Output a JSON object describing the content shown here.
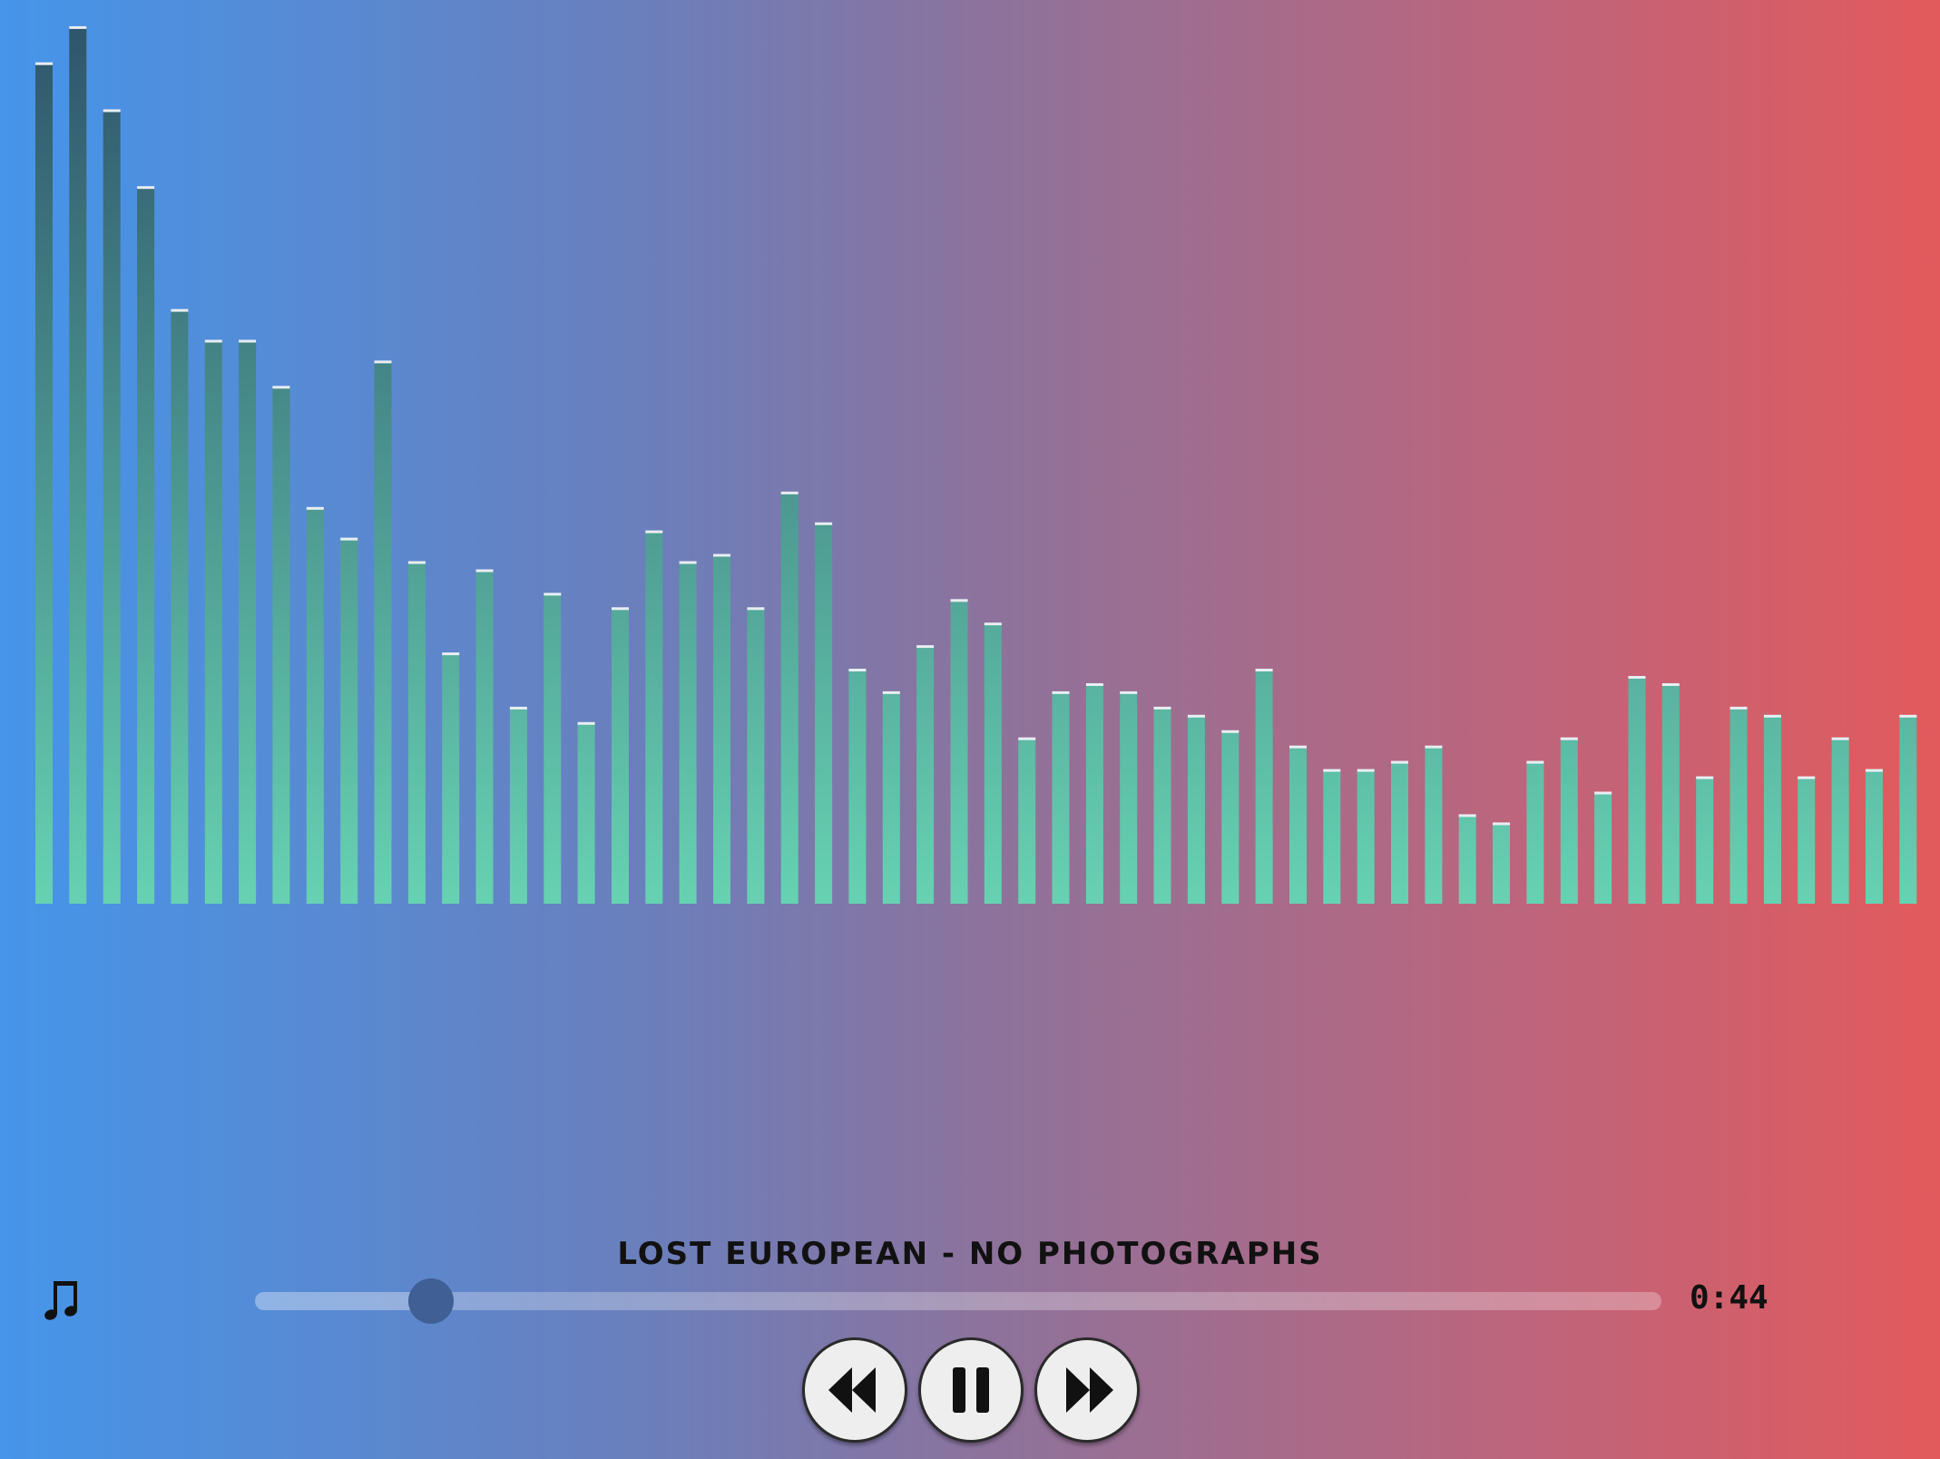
{
  "player": {
    "track_title": "LOST EUROPEAN - NO PHOTOGRAPHS",
    "elapsed_time": "0:44",
    "progress_fraction": 0.125,
    "controls": {
      "rewind_icon": "rewind-icon",
      "pause_icon": "pause-icon",
      "forward_icon": "fast-forward-icon"
    },
    "music_icon": "music-note-icon"
  },
  "visualizer": {
    "bar_levels": [
      0.93,
      0.97,
      0.878,
      0.793,
      0.657,
      0.623,
      0.623,
      0.572,
      0.438,
      0.404,
      0.6,
      0.378,
      0.277,
      0.369,
      0.217,
      0.343,
      0.2,
      0.327,
      0.412,
      0.378,
      0.386,
      0.327,
      0.455,
      0.421,
      0.259,
      0.234,
      0.285,
      0.336,
      0.31,
      0.183,
      0.234,
      0.243,
      0.234,
      0.217,
      0.208,
      0.191,
      0.259,
      0.174,
      0.148,
      0.148,
      0.157,
      0.174,
      0.098,
      0.089,
      0.157,
      0.183,
      0.123,
      0.251,
      0.243,
      0.14,
      0.217,
      0.208,
      0.14,
      0.183,
      0.148,
      0.208
    ],
    "bar_top_color": "#2d5169",
    "bar_bottom_color": "#67d2b2",
    "cap_color": "#e8eef2"
  },
  "colors": {
    "background_left": "#4595ea",
    "background_right": "#e25a5c",
    "seek_thumb": "#3f5f95",
    "button_face": "#eeeeee"
  }
}
